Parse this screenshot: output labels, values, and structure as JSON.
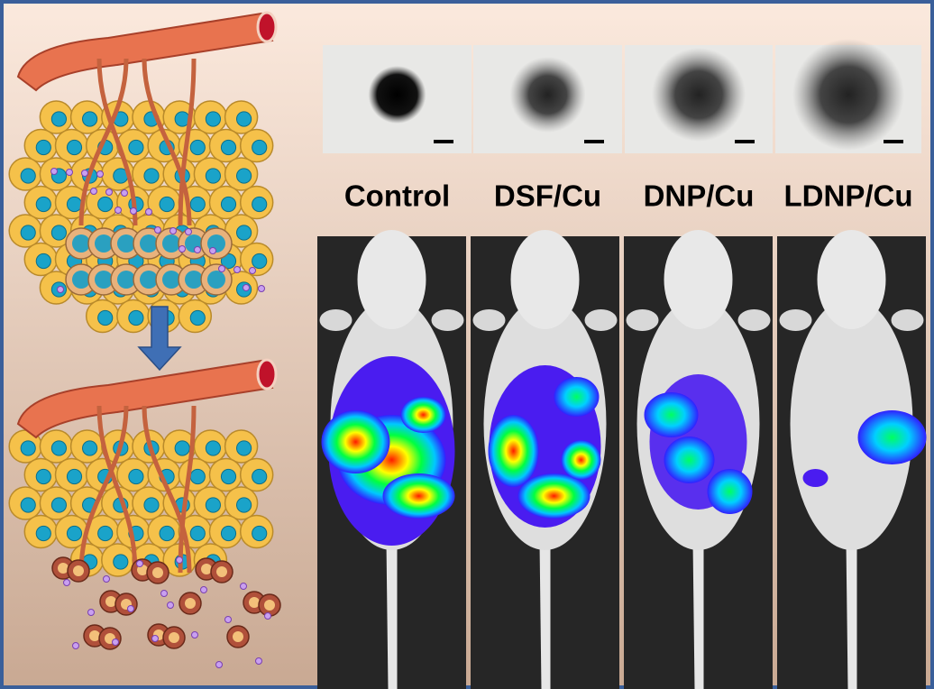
{
  "panels": [
    {
      "label": "Control"
    },
    {
      "label": "DSF/Cu"
    },
    {
      "label": "DNP/Cu"
    },
    {
      "label": "LDNP/Cu"
    }
  ]
}
